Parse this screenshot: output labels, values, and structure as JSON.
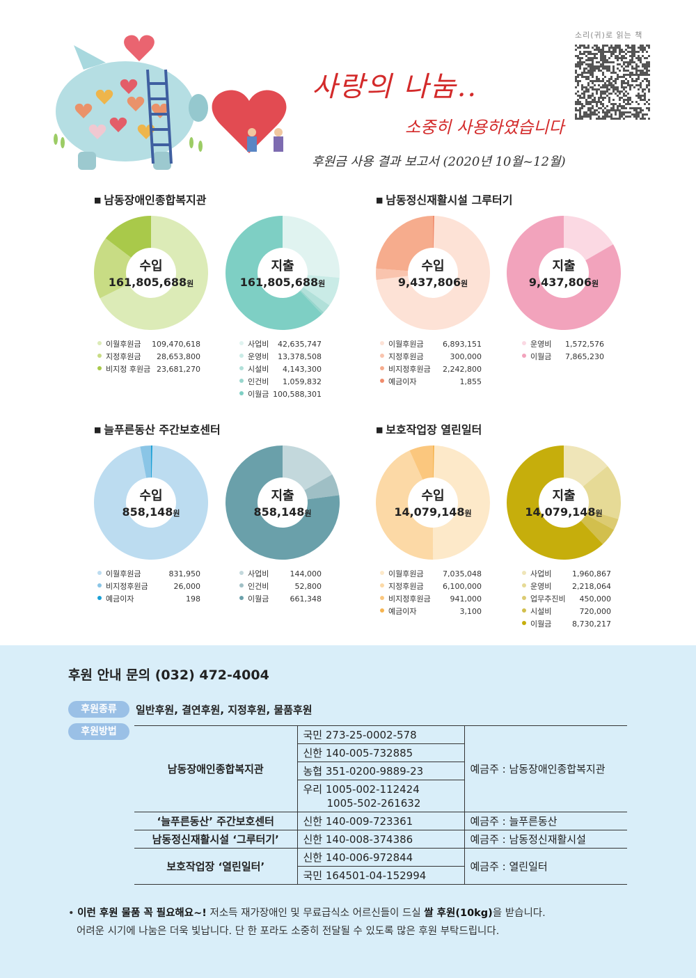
{
  "header": {
    "title_main": "사랑의 나눔..",
    "title_sub": "소중히 사용하였습니다",
    "period": "후원금 사용 결과 보고서 (2020년 10월~12월)",
    "qr_label": "소리(귀)로 읽는 책"
  },
  "sections": [
    {
      "title": "남동장애인종합복지관",
      "income": {
        "label": "수입",
        "total": "161,805,688",
        "unit": "원",
        "items": [
          {
            "name": "이월후원금",
            "amount": "109,470,618",
            "color": "#dcebb7"
          },
          {
            "name": "지정후원금",
            "amount": "28,653,800",
            "color": "#c8dc84"
          },
          {
            "name": "비지정 후원금",
            "amount": "23,681,270",
            "color": "#a9c94a"
          }
        ]
      },
      "expense": {
        "label": "지출",
        "total": "161,805,688",
        "unit": "원",
        "items": [
          {
            "name": "사업비",
            "amount": "42,635,747",
            "color": "#e0f3f0"
          },
          {
            "name": "운영비",
            "amount": "13,378,508",
            "color": "#c9ebe6"
          },
          {
            "name": "시설비",
            "amount": "4,143,300",
            "color": "#b1e0d9"
          },
          {
            "name": "인건비",
            "amount": "1,059,832",
            "color": "#98d6cd"
          },
          {
            "name": "이월금",
            "amount": "100,588,301",
            "color": "#7ecfc4"
          }
        ]
      }
    },
    {
      "title": "남동정신재활시설 그루터기",
      "income": {
        "label": "수입",
        "total": "9,437,806",
        "unit": "원",
        "items": [
          {
            "name": "이월후원금",
            "amount": "6,893,151",
            "color": "#fde2d6"
          },
          {
            "name": "지정후원금",
            "amount": "300,000",
            "color": "#f9c4ae"
          },
          {
            "name": "비지정후원금",
            "amount": "2,242,800",
            "color": "#f6ac8d"
          },
          {
            "name": "예금이자",
            "amount": "1,855",
            "color": "#f08c6c"
          }
        ]
      },
      "expense": {
        "label": "지출",
        "total": "9,437,806",
        "unit": "원",
        "items": [
          {
            "name": "운영비",
            "amount": "1,572,576",
            "color": "#fbd9e3"
          },
          {
            "name": "이월금",
            "amount": "7,865,230",
            "color": "#f2a3bc"
          }
        ]
      }
    },
    {
      "title": "늘푸른동산 주간보호센터",
      "income": {
        "label": "수입",
        "total": "858,148",
        "unit": "원",
        "items": [
          {
            "name": "이월후원금",
            "amount": "831,950",
            "color": "#bcdcf0"
          },
          {
            "name": "비지정후원금",
            "amount": "26,000",
            "color": "#8ac5e6"
          },
          {
            "name": "예금이자",
            "amount": "198",
            "color": "#1aa0d6"
          }
        ]
      },
      "expense": {
        "label": "지출",
        "total": "858,148",
        "unit": "원",
        "items": [
          {
            "name": "사업비",
            "amount": "144,000",
            "color": "#c3d8dc"
          },
          {
            "name": "인건비",
            "amount": "52,800",
            "color": "#9fbfc5"
          },
          {
            "name": "이월금",
            "amount": "661,348",
            "color": "#6aa0aa"
          }
        ]
      }
    },
    {
      "title": "보호작업장 열린일터",
      "income": {
        "label": "수입",
        "total": "14,079,148",
        "unit": "원",
        "items": [
          {
            "name": "이월후원금",
            "amount": "7,035,048",
            "color": "#fde9c9"
          },
          {
            "name": "지정후원금",
            "amount": "6,100,000",
            "color": "#fcd9a6"
          },
          {
            "name": "비지정후원금",
            "amount": "941,000",
            "color": "#fbc77e"
          },
          {
            "name": "예금이자",
            "amount": "3,100",
            "color": "#f6b451"
          }
        ]
      },
      "expense": {
        "label": "지출",
        "total": "14,079,148",
        "unit": "원",
        "items": [
          {
            "name": "사업비",
            "amount": "1,960,867",
            "color": "#efe5b8"
          },
          {
            "name": "운영비",
            "amount": "2,218,064",
            "color": "#e6da96"
          },
          {
            "name": "업무추진비",
            "amount": "450,000",
            "color": "#dccb72"
          },
          {
            "name": "시설비",
            "amount": "720,000",
            "color": "#d2bf4d"
          },
          {
            "name": "이월금",
            "amount": "8,730,217",
            "color": "#c6ae0c"
          }
        ]
      }
    }
  ],
  "info": {
    "contact": "후원 안내 문의 (032) 472-4004",
    "kind_label": "후원종류",
    "kinds": "일반후원, 결연후원, 지정후원, 물품후원",
    "method_label": "후원방법",
    "banks": [
      {
        "org": "남동장애인종합복지관",
        "accounts": [
          "국민 273-25-0002-578",
          "신한 140-005-732885",
          "농협 351-0200-9889-23",
          "우리 1005-002-112424"
        ],
        "extra": "1005-502-261632",
        "holder": "예금주 : 남동장애인종합복지관"
      },
      {
        "org": "‘늘푸른동산’ 주간보호센터",
        "accounts": [
          "신한 140-009-723361"
        ],
        "holder": "예금주 : 늘푸른동산"
      },
      {
        "org": "남동정신재활시설 ‘그루터기’",
        "accounts": [
          "신한 140-008-374386"
        ],
        "holder": "예금주 : 남동정신재활시설"
      },
      {
        "org": "보호작업장 ‘열린일터’",
        "accounts": [
          "신한 140-006-972844",
          "국민 164501-04-152994"
        ],
        "holder": "예금주 : 열린일터"
      }
    ],
    "notice_bold1": "이런 후원 물품 꼭 필요해요~!",
    "notice_text1": " 저소득 재가장애인 및 무료급식소 어르신들이 드실 ",
    "notice_bold2": "쌀 후원(10kg)",
    "notice_text2": "을 받습니다.",
    "notice_line2": "어려운 시기에 나눔은 더욱 빛납니다. 단 한 포라도 소중히 전달될 수 있도록 많은 후원 부탁드립니다."
  }
}
